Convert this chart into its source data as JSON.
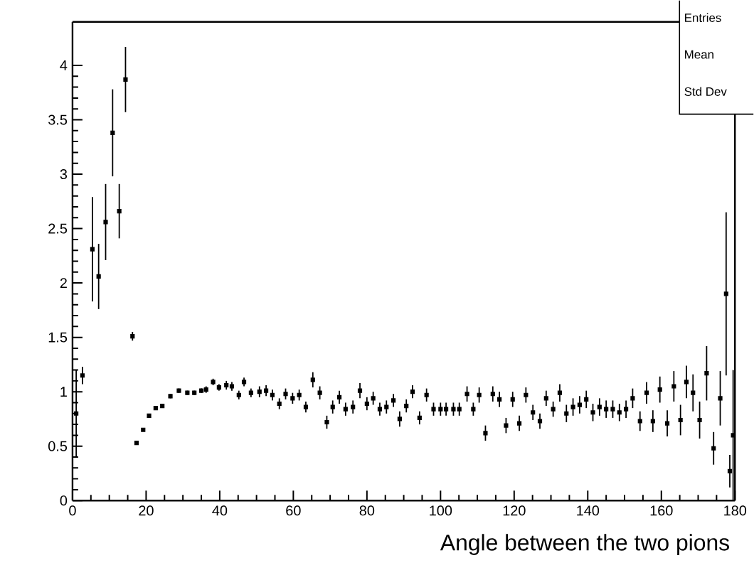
{
  "chart_data": {
    "type": "scatter",
    "xlabel": "Angle between the two pions",
    "annotations": [
      "Entries",
      "Mean",
      "Std Dev"
    ],
    "xlim": [
      0,
      180
    ],
    "ylim": [
      0,
      4.4
    ],
    "xticks": [
      0,
      20,
      40,
      60,
      80,
      100,
      120,
      140,
      160,
      180
    ],
    "yticks": [
      0,
      0.5,
      1,
      1.5,
      2,
      2.5,
      3,
      3.5,
      4
    ],
    "marker": "square",
    "x": [
      1,
      2.7,
      5.4,
      7.1,
      9.0,
      10.9,
      12.7,
      14.4,
      16.3,
      17.4,
      19.2,
      20.8,
      22.6,
      24.4,
      26.6,
      28.9,
      31.2,
      33.1,
      35,
      36.3,
      38.2,
      39.8,
      41.8,
      43.3,
      45.2,
      46.6,
      48.5,
      50.8,
      52.6,
      54.3,
      56.2,
      57.9,
      59.8,
      61.6,
      63.4,
      65.3,
      67.2,
      69.1,
      70.7,
      72.5,
      74.2,
      76.2,
      78.1,
      80.0,
      81.7,
      83.5,
      85.3,
      87.2,
      88.9,
      90.7,
      92.4,
      94.3,
      96.2,
      98.1,
      100.0,
      101.5,
      103.5,
      105.1,
      107.2,
      108.9,
      110.5,
      112.2,
      114.2,
      116.0,
      117.8,
      119.6,
      121.4,
      123.2,
      125.1,
      127.0,
      128.7,
      130.6,
      132.4,
      134.2,
      136.0,
      137.8,
      139.6,
      141.4,
      143.2,
      145.0,
      146.8,
      148.6,
      150.4,
      152.2,
      154.2,
      156.0,
      157.7,
      159.6,
      161.6,
      163.4,
      165.2,
      166.8,
      168.6,
      170.4,
      172.3,
      174.2,
      176.0,
      177.6,
      178.6,
      179.5
    ],
    "values": [
      0.8,
      1.15,
      2.31,
      2.06,
      2.56,
      3.38,
      2.66,
      3.87,
      1.51,
      0.53,
      0.65,
      0.78,
      0.85,
      0.87,
      0.96,
      1.01,
      0.99,
      0.99,
      1.01,
      1.02,
      1.09,
      1.04,
      1.06,
      1.05,
      0.97,
      1.09,
      0.99,
      1.0,
      1.01,
      0.97,
      0.89,
      0.98,
      0.94,
      0.97,
      0.86,
      1.11,
      0.99,
      0.72,
      0.86,
      0.95,
      0.84,
      0.86,
      1.01,
      0.89,
      0.94,
      0.84,
      0.86,
      0.92,
      0.75,
      0.87,
      1.0,
      0.76,
      0.97,
      0.84,
      0.84,
      0.84,
      0.84,
      0.84,
      0.98,
      0.84,
      0.97,
      0.62,
      0.98,
      0.93,
      0.69,
      0.93,
      0.71,
      0.97,
      0.81,
      0.73,
      0.94,
      0.84,
      0.99,
      0.8,
      0.86,
      0.88,
      0.93,
      0.81,
      0.86,
      0.84,
      0.84,
      0.81,
      0.84,
      0.94,
      0.73,
      0.99,
      0.73,
      1.02,
      0.71,
      1.05,
      0.74,
      1.09,
      0.99,
      0.74,
      1.17,
      0.48,
      0.94,
      1.9,
      0.27,
      0.6
    ],
    "errors": [
      0.4,
      0.08,
      0.48,
      0.3,
      0.35,
      0.4,
      0.25,
      0.3,
      0.04,
      0.01,
      0.01,
      0.01,
      0.01,
      0.01,
      0.02,
      0.02,
      0.02,
      0.02,
      0.02,
      0.03,
      0.03,
      0.03,
      0.04,
      0.04,
      0.04,
      0.04,
      0.04,
      0.05,
      0.05,
      0.05,
      0.05,
      0.05,
      0.05,
      0.05,
      0.05,
      0.07,
      0.06,
      0.06,
      0.06,
      0.06,
      0.06,
      0.06,
      0.07,
      0.06,
      0.06,
      0.06,
      0.06,
      0.06,
      0.07,
      0.06,
      0.06,
      0.06,
      0.06,
      0.06,
      0.06,
      0.06,
      0.06,
      0.06,
      0.07,
      0.06,
      0.07,
      0.07,
      0.07,
      0.07,
      0.07,
      0.07,
      0.07,
      0.07,
      0.07,
      0.07,
      0.07,
      0.07,
      0.08,
      0.08,
      0.08,
      0.08,
      0.08,
      0.08,
      0.08,
      0.08,
      0.08,
      0.08,
      0.08,
      0.09,
      0.09,
      0.1,
      0.1,
      0.12,
      0.12,
      0.14,
      0.14,
      0.15,
      0.17,
      0.17,
      0.25,
      0.15,
      0.25,
      0.75,
      0.15,
      0.6
    ],
    "xerrors": [
      0.4,
      0.4,
      0.4,
      0.4,
      0.4,
      0.4,
      0.4,
      0.4,
      0.4,
      0.4,
      0.4,
      0.4,
      0.4,
      0.4,
      0.4,
      0.4,
      0.4,
      0.4,
      0.4,
      0.4,
      0.4,
      0.4,
      0.4,
      0.4,
      0.4,
      0.4,
      0.4,
      0.4,
      0.4,
      0.4,
      0.4,
      0.4,
      0.4,
      0.4,
      0.4,
      0.4,
      0.4,
      0.4,
      0.4,
      0.4,
      0.4,
      0.4,
      0.4,
      0.4,
      0.4,
      0.4,
      0.4,
      0.4,
      0.4,
      0.4,
      0.4,
      0.4,
      0.4,
      0.4,
      0.4,
      0.4,
      0.4,
      0.4,
      0.4,
      0.4,
      0.4,
      0.4,
      0.4,
      0.4,
      0.4,
      0.4,
      0.4,
      0.4,
      0.4,
      0.4,
      0.4,
      0.4,
      0.4,
      0.4,
      0.4,
      0.4,
      0.4,
      0.4,
      0.4,
      0.4,
      0.4,
      0.4,
      0.4,
      0.4,
      0.4,
      0.4,
      0.4,
      0.4,
      0.4,
      0.4,
      0.4,
      0.4,
      0.4,
      0.4,
      0.4,
      0.4,
      0.4,
      0.4,
      0.4,
      0.4
    ]
  }
}
